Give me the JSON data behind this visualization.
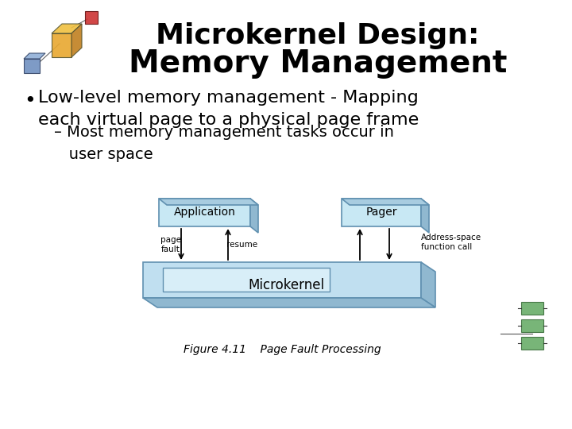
{
  "title_line1": "Microkernel Design:",
  "title_line2": "Memory Management",
  "fig_caption": "Figure 4.11    Page Fault Processing",
  "bg_color": "#ffffff",
  "title_color": "#000000",
  "text_color": "#000000",
  "box_fill": "#c8e8f4",
  "box_edge": "#6090b0",
  "mk_fill_top": "#c0dff0",
  "mk_fill_side": "#90b8d0",
  "mk_edge": "#6090b0",
  "tray_fill": "#d8eef8",
  "title_fontsize": 26,
  "bullet_fontsize": 16,
  "sub_fontsize": 14
}
